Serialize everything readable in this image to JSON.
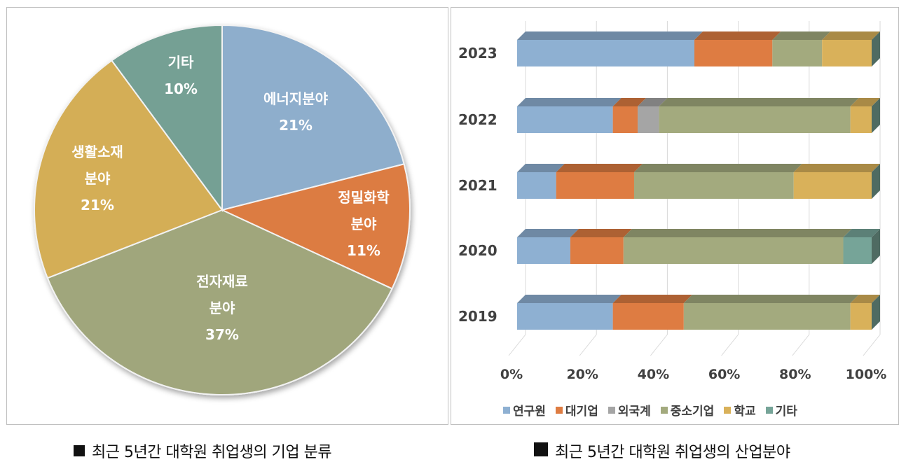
{
  "pie": {
    "caption": "최근 5년간 대학원 취업생의 기업 분류",
    "slices": [
      {
        "label_lines": [
          "에너지분야",
          "21%"
        ],
        "value": 21,
        "color": "#8eaecc"
      },
      {
        "label_lines": [
          "정밀화학",
          "분야",
          "11%"
        ],
        "value": 11,
        "color": "#dc7b42"
      },
      {
        "label_lines": [
          "전자재료",
          "분야",
          "37%"
        ],
        "value": 37,
        "color": "#a0a67c"
      },
      {
        "label_lines": [
          "생활소재",
          "분야",
          "21%"
        ],
        "value": 21,
        "color": "#d4ae56"
      },
      {
        "label_lines": [
          "기타",
          "10%"
        ],
        "value": 10,
        "color": "#74a094"
      }
    ]
  },
  "bar": {
    "caption": "최근 5년간 대학원 취업생의 산업분야",
    "x_ticks": [
      "0%",
      "20%",
      "40%",
      "60%",
      "80%",
      "100%"
    ],
    "legend": [
      {
        "label": "연구원",
        "color": "#8eb0d2"
      },
      {
        "label": "대기업",
        "color": "#de7c42"
      },
      {
        "label": "외국계",
        "color": "#a5a5a5"
      },
      {
        "label": "중소기업",
        "color": "#a3aa7e"
      },
      {
        "label": "학교",
        "color": "#d9b15a"
      },
      {
        "label": "기타",
        "color": "#76a498"
      }
    ]
  },
  "chart_data": [
    {
      "type": "pie",
      "title": "최근 5년간 대학원 취업생의 기업 분류",
      "categories": [
        "에너지분야",
        "정밀화학 분야",
        "전자재료 분야",
        "생활소재 분야",
        "기타"
      ],
      "values": [
        21,
        11,
        37,
        21,
        10
      ],
      "unit": "%"
    },
    {
      "type": "bar",
      "orientation": "horizontal",
      "stacked": "percent",
      "title": "최근 5년간 대학원 취업생의 산업분야",
      "categories": [
        "2023",
        "2022",
        "2021",
        "2020",
        "2019"
      ],
      "xlabel": "",
      "ylabel": "",
      "xlim": [
        0,
        100
      ],
      "x_tick_labels": [
        "0%",
        "20%",
        "40%",
        "60%",
        "80%",
        "100%"
      ],
      "grid": true,
      "legend_position": "bottom",
      "series": [
        {
          "name": "연구원",
          "values": [
            50,
            27,
            11,
            15,
            27
          ]
        },
        {
          "name": "대기업",
          "values": [
            22,
            7,
            22,
            15,
            20
          ]
        },
        {
          "name": "외국계",
          "values": [
            0,
            6,
            0,
            0,
            0
          ]
        },
        {
          "name": "중소기업",
          "values": [
            14,
            54,
            45,
            62,
            47
          ]
        },
        {
          "name": "학교",
          "values": [
            14,
            6,
            22,
            0,
            6
          ]
        },
        {
          "name": "기타",
          "values": [
            0,
            0,
            0,
            8,
            0
          ]
        }
      ]
    }
  ]
}
